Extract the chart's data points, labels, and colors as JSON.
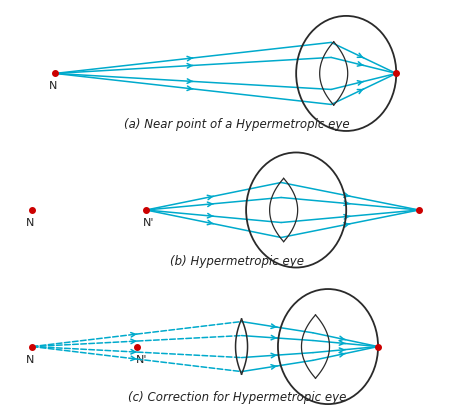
{
  "bg_color": "#ffffff",
  "ray_color": "#00aacc",
  "eye_color": "#2a2a2a",
  "point_color": "#cc0000",
  "label_color": "#222222",
  "captions": [
    "(a) Near point of a Hypermetropic eye",
    "(b) Hypermetropic eye",
    "(c) Correction for Hypermetropic eye"
  ],
  "caption_fontsize": 8.5,
  "figsize": [
    4.74,
    4.2
  ],
  "dpi": 100
}
